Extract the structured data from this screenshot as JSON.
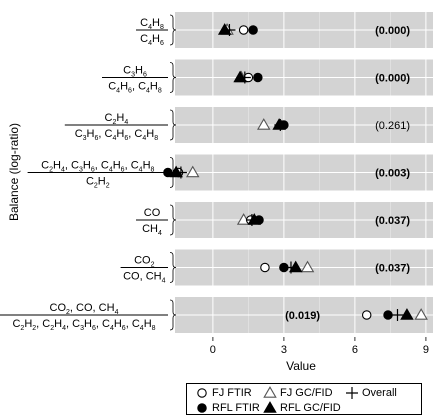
{
  "chart_data": {
    "type": "scatter",
    "xlabel": "Value",
    "ylabel": "Balance (log-ratio)",
    "xlim": [
      -1.6,
      9.3
    ],
    "xticks": [
      0,
      3,
      6,
      9
    ],
    "tick_labels": [
      "0",
      "3",
      "6",
      "9"
    ],
    "grid": true,
    "legend_position": "bottom",
    "legend": [
      {
        "name": "FJ FTIR",
        "marker": "open-circle"
      },
      {
        "name": "FJ GC/FID",
        "marker": "open-triangle"
      },
      {
        "name": "Overall",
        "marker": "plus"
      },
      {
        "name": "RFL FTIR",
        "marker": "filled-circle"
      },
      {
        "name": "RFL GC/FID",
        "marker": "filled-triangle"
      }
    ],
    "balances": [
      {
        "numerator": [
          "C4H8"
        ],
        "denominator": [
          "C4H6"
        ],
        "p_value": "(0.000)",
        "significant": true,
        "p_side": "right",
        "values": {
          "FJ FTIR": 1.3,
          "FJ GC/FID": 0.6,
          "Overall": 0.7,
          "RFL FTIR": 1.7,
          "RFL GC/FID": 0.5
        }
      },
      {
        "numerator": [
          "C3H6"
        ],
        "denominator": [
          "C4H6",
          "C4H8"
        ],
        "p_value": "(0.000)",
        "significant": true,
        "p_side": "right",
        "values": {
          "FJ FTIR": 1.5,
          "FJ GC/FID": 1.2,
          "Overall": 1.35,
          "RFL FTIR": 1.9,
          "RFL GC/FID": 1.15
        }
      },
      {
        "numerator": [
          "C2H4"
        ],
        "denominator": [
          "C3H6",
          "C4H6",
          "C4H8"
        ],
        "p_value": "(0.261)",
        "significant": false,
        "p_side": "right",
        "values": {
          "FJ FTIR": 2.9,
          "FJ GC/FID": 2.15,
          "Overall": 2.85,
          "RFL FTIR": 3.0,
          "RFL GC/FID": 2.8
        }
      },
      {
        "numerator": [
          "C2H4",
          "C3H6",
          "C4H6",
          "C4H8"
        ],
        "denominator": [
          "C2H2"
        ],
        "p_value": "(0.003)",
        "significant": true,
        "p_side": "right",
        "values": {
          "FJ FTIR": -1.45,
          "FJ GC/FID": -0.85,
          "Overall": -1.35,
          "RFL FTIR": -1.9,
          "RFL GC/FID": -1.55
        }
      },
      {
        "numerator": [
          "CO"
        ],
        "denominator": [
          "CH4"
        ],
        "p_value": "(0.037)",
        "significant": true,
        "p_side": "right",
        "values": {
          "FJ FTIR": 1.6,
          "FJ GC/FID": 1.3,
          "Overall": 1.65,
          "RFL FTIR": 1.95,
          "RFL GC/FID": 1.75
        }
      },
      {
        "numerator": [
          "CO2"
        ],
        "denominator": [
          "CO",
          "CH4"
        ],
        "p_value": "(0.037)",
        "significant": true,
        "p_side": "right",
        "values": {
          "FJ FTIR": 2.2,
          "FJ GC/FID": 4.0,
          "Overall": 3.3,
          "RFL FTIR": 3.0,
          "RFL GC/FID": 3.5
        }
      },
      {
        "numerator": [
          "CO2",
          "CO",
          "CH4"
        ],
        "denominator": [
          "C2H2",
          "C2H4",
          "C3H6",
          "C4H6",
          "C4H8"
        ],
        "p_value": "(0.019)",
        "significant": true,
        "p_side": "left",
        "values": {
          "FJ FTIR": 6.5,
          "FJ GC/FID": 8.8,
          "Overall": 7.8,
          "RFL FTIR": 7.4,
          "RFL GC/FID": 8.2
        }
      }
    ]
  }
}
